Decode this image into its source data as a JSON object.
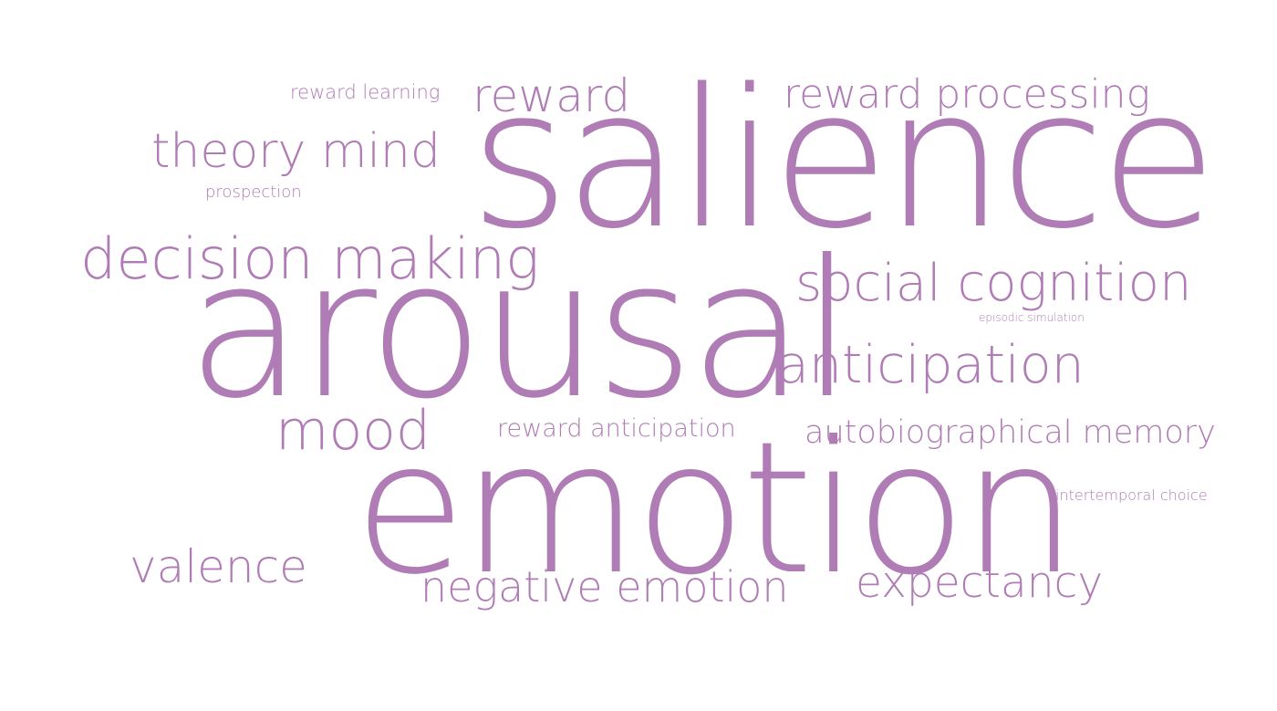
{
  "word_cloud": {
    "color": "#b07cb5",
    "words": {
      "reward_learning": "reward learning",
      "reward": "reward",
      "reward_processing": "reward processing",
      "theory_mind": "theory mind",
      "prospection": "prospection",
      "salience": "salience",
      "decision_making": "decision making",
      "social_cognition": "social cognition",
      "episodic_simulation": "episodic simulation",
      "arousal": "arousal",
      "anticipation": "anticipation",
      "mood": "mood",
      "reward_anticipation": "reward anticipation",
      "autobiographical_memory": "autobiographical memory",
      "emotion": "emotion",
      "intertemporal_choice": "intertemporal choice",
      "valence": "valence",
      "negative_emotion": "negative emotion",
      "expectancy": "expectancy"
    }
  }
}
